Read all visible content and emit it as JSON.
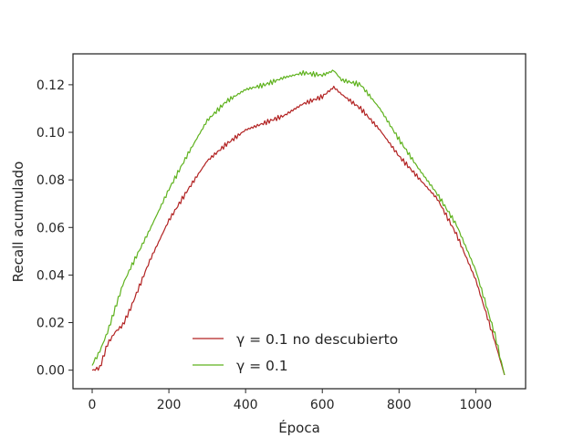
{
  "chart_data": {
    "type": "line",
    "title": "",
    "xlabel": "Época",
    "ylabel": "Recall acumulado",
    "xlim": [
      -50,
      1130
    ],
    "ylim": [
      -0.0078,
      0.133
    ],
    "xticks": [
      0,
      200,
      400,
      600,
      800,
      1000
    ],
    "yticks": [
      0.0,
      0.02,
      0.04,
      0.06,
      0.08,
      0.1,
      0.12
    ],
    "xtick_labels": [
      "0",
      "200",
      "400",
      "600",
      "800",
      "1000"
    ],
    "ytick_labels": [
      "0.00",
      "0.02",
      "0.04",
      "0.06",
      "0.08",
      "0.10",
      "0.12"
    ],
    "grid": false,
    "legend_position": "lower center",
    "series": [
      {
        "name": "γ = 0.1 no descubierto",
        "color": "#b22222",
        "x": [
          0,
          20,
          40,
          60,
          80,
          100,
          150,
          200,
          250,
          300,
          350,
          400,
          450,
          500,
          550,
          600,
          630,
          650,
          700,
          750,
          800,
          850,
          900,
          950,
          1000,
          1050,
          1075
        ],
        "y": [
          0.0,
          0.001,
          0.011,
          0.016,
          0.019,
          0.026,
          0.046,
          0.063,
          0.076,
          0.088,
          0.095,
          0.101,
          0.104,
          0.107,
          0.112,
          0.115,
          0.119,
          0.116,
          0.11,
          0.101,
          0.09,
          0.081,
          0.072,
          0.057,
          0.038,
          0.012,
          -0.002
        ]
      },
      {
        "name": "γ = 0.1",
        "color": "#5fb21e",
        "x": [
          0,
          20,
          40,
          60,
          80,
          100,
          150,
          200,
          250,
          300,
          350,
          400,
          450,
          500,
          550,
          600,
          630,
          650,
          700,
          750,
          800,
          850,
          900,
          950,
          1000,
          1050,
          1075
        ],
        "y": [
          0.002,
          0.008,
          0.016,
          0.026,
          0.036,
          0.043,
          0.059,
          0.076,
          0.091,
          0.105,
          0.113,
          0.118,
          0.12,
          0.123,
          0.125,
          0.124,
          0.126,
          0.122,
          0.12,
          0.11,
          0.097,
          0.085,
          0.074,
          0.061,
          0.042,
          0.015,
          -0.002
        ]
      }
    ]
  }
}
